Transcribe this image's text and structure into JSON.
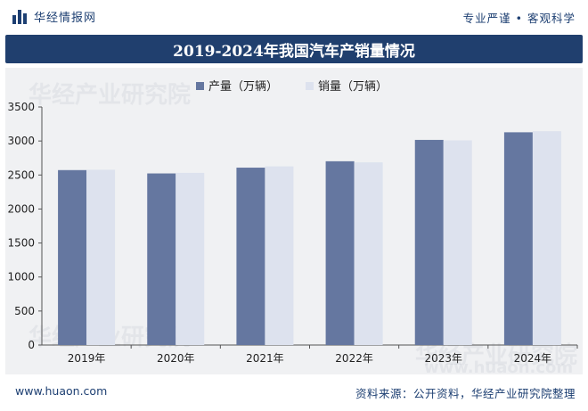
{
  "header": {
    "brand": "华经情报网",
    "slogan": "专业严谨 • 客观科学"
  },
  "title": "2019-2024年我国汽车产销量情况",
  "footer": {
    "url": "www.huaon.com",
    "source": "资料来源：公开资料，华经产业研究院整理"
  },
  "watermarks": [
    "华经产业研究院",
    "华经产业研究院",
    "华经产业研究院",
    "www.huaon.com"
  ],
  "colors": {
    "header_blue": "#1d3f72",
    "title_bg": "#203f6e",
    "production": "#6577a0",
    "sales": "#dde2ee",
    "panel_bg": "#f0f1f3"
  },
  "chart_data": {
    "type": "bar",
    "categories": [
      "2019年",
      "2020年",
      "2021年",
      "2022年",
      "2023年",
      "2024年"
    ],
    "series": [
      {
        "name": "产量（万辆）",
        "values": [
          2572,
          2523,
          2608,
          2702,
          3016,
          3128
        ]
      },
      {
        "name": "销量（万辆）",
        "values": [
          2577,
          2531,
          2627,
          2686,
          3009,
          3144
        ]
      }
    ],
    "yticks": [
      "0",
      "500",
      "1000",
      "1500",
      "2000",
      "2500",
      "3000",
      "3500"
    ],
    "ylim": [
      0,
      3500
    ],
    "legend": "top-center",
    "grid": false
  }
}
